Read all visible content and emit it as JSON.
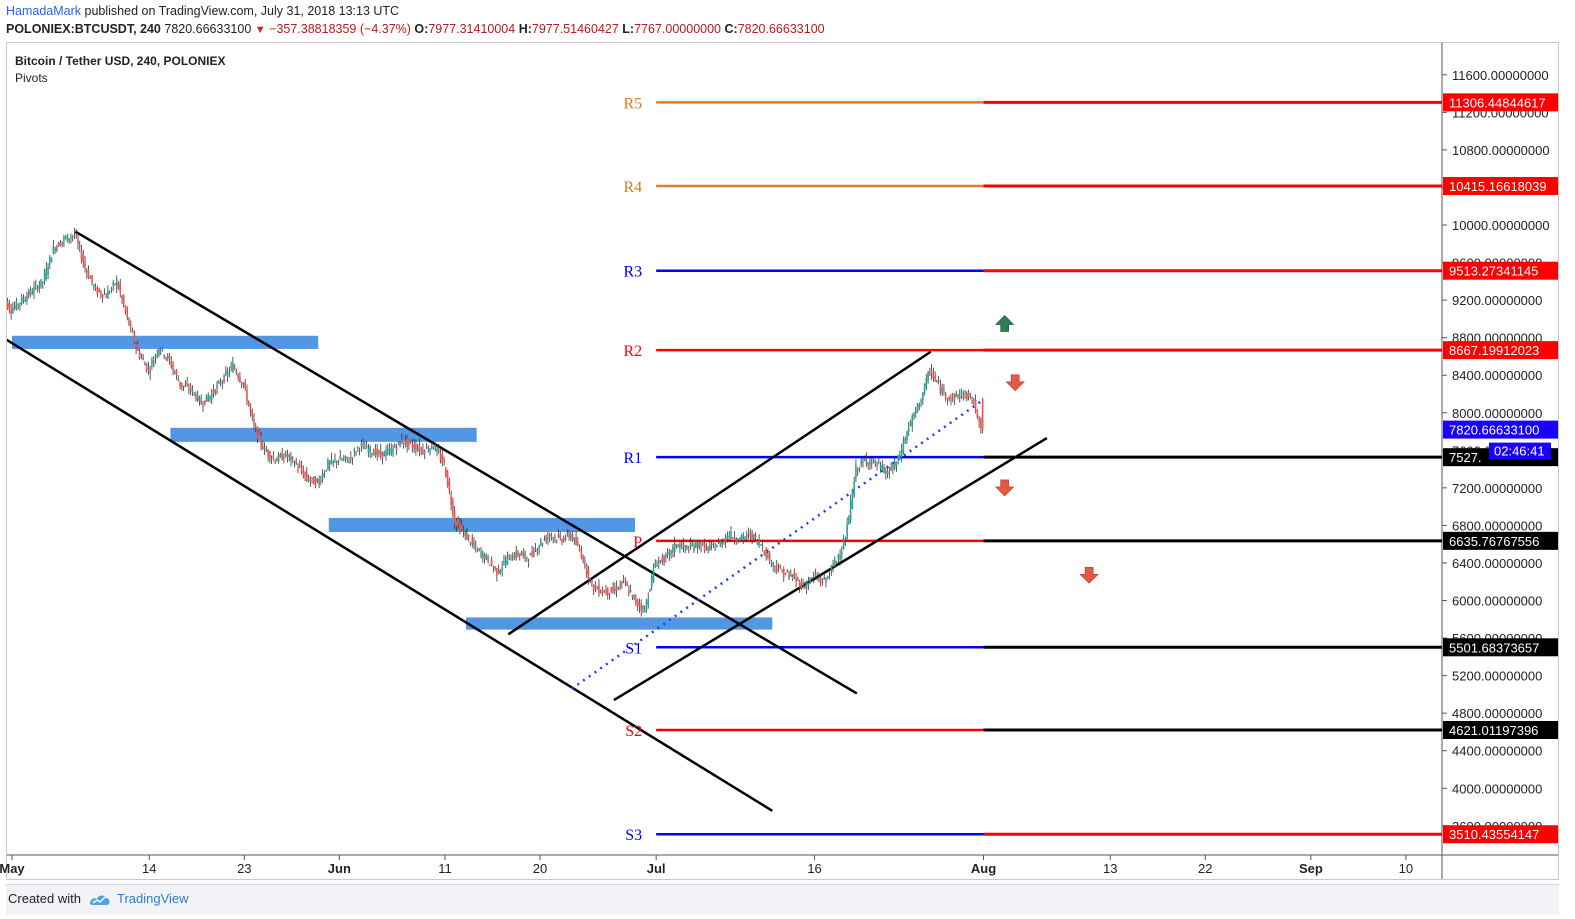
{
  "header": {
    "publisher": "HamadaMark",
    "published_text": "published on TradingView.com, July 31, 2018 13:13 UTC",
    "symbol": "POLONIEX:BTCUSDT, 240",
    "last": "7820.66633100",
    "change": "−357.38818359 (−4.37%)",
    "open_label": "O:",
    "open": "7977.31410004",
    "high_label": "H:",
    "high": "7977.51460427",
    "low_label": "L:",
    "low": "7767.00000000",
    "close_label": "C:",
    "close": "7820.66633100"
  },
  "legend": {
    "title": "Bitcoin / Tether USD, 240, POLONIEX",
    "indicator": "Pivots"
  },
  "footer": {
    "created_with": "Created with",
    "brand": "TradingView"
  },
  "colors": {
    "up_candle": "#26a69a",
    "down_candle": "#ef5350",
    "resistance_orange": "#e07b28",
    "pivot_red": "#ff0000",
    "pivot_blue": "#0000ff",
    "zone_blue": "#4a90e2",
    "arrow_up": "#2e7d5b",
    "arrow_down": "#e25a43"
  },
  "chart_data": {
    "type": "candlestick",
    "title": "Bitcoin / Tether USD, 240, POLONIEX",
    "ylim": [
      3200,
      11900
    ],
    "y_ticks": [
      11600,
      11200,
      10800,
      10400,
      10000,
      9600,
      9200,
      8800,
      8400,
      8000,
      7600,
      7200,
      6800,
      6400,
      6000,
      5600,
      5200,
      4800,
      4400,
      4000,
      3600
    ],
    "x_ticks": [
      {
        "label": "May",
        "date": "2018-05-01"
      },
      {
        "label": "14",
        "date": "2018-05-14"
      },
      {
        "label": "23",
        "date": "2018-05-23"
      },
      {
        "label": "Jun",
        "date": "2018-06-01"
      },
      {
        "label": "11",
        "date": "2018-06-11"
      },
      {
        "label": "20",
        "date": "2018-06-20"
      },
      {
        "label": "Jul",
        "date": "2018-07-01"
      },
      {
        "label": "16",
        "date": "2018-07-16"
      },
      {
        "label": "Aug",
        "date": "2018-08-01"
      },
      {
        "label": "13",
        "date": "2018-08-13"
      },
      {
        "label": "22",
        "date": "2018-08-22"
      },
      {
        "label": "Sep",
        "date": "2018-09-01"
      },
      {
        "label": "10",
        "date": "2018-09-10"
      }
    ],
    "daily_close": [
      [
        "2018-04-30",
        9250
      ],
      [
        "2018-05-01",
        9100
      ],
      [
        "2018-05-02",
        9200
      ],
      [
        "2018-05-03",
        9300
      ],
      [
        "2018-05-04",
        9400
      ],
      [
        "2018-05-05",
        9750
      ],
      [
        "2018-05-06",
        9850
      ],
      [
        "2018-05-07",
        9900
      ],
      [
        "2018-05-08",
        9550
      ],
      [
        "2018-05-09",
        9300
      ],
      [
        "2018-05-10",
        9250
      ],
      [
        "2018-05-11",
        9400
      ],
      [
        "2018-05-12",
        9000
      ],
      [
        "2018-05-13",
        8650
      ],
      [
        "2018-05-14",
        8450
      ],
      [
        "2018-05-15",
        8700
      ],
      [
        "2018-05-16",
        8550
      ],
      [
        "2018-05-17",
        8300
      ],
      [
        "2018-05-18",
        8250
      ],
      [
        "2018-05-19",
        8100
      ],
      [
        "2018-05-20",
        8200
      ],
      [
        "2018-05-21",
        8350
      ],
      [
        "2018-05-22",
        8500
      ],
      [
        "2018-05-23",
        8300
      ],
      [
        "2018-05-24",
        7850
      ],
      [
        "2018-05-25",
        7600
      ],
      [
        "2018-05-26",
        7500
      ],
      [
        "2018-05-27",
        7550
      ],
      [
        "2018-05-28",
        7450
      ],
      [
        "2018-05-29",
        7300
      ],
      [
        "2018-05-30",
        7250
      ],
      [
        "2018-05-31",
        7450
      ],
      [
        "2018-06-01",
        7500
      ],
      [
        "2018-06-02",
        7500
      ],
      [
        "2018-06-03",
        7650
      ],
      [
        "2018-06-04",
        7600
      ],
      [
        "2018-06-05",
        7550
      ],
      [
        "2018-06-06",
        7600
      ],
      [
        "2018-06-07",
        7700
      ],
      [
        "2018-06-08",
        7650
      ],
      [
        "2018-06-09",
        7600
      ],
      [
        "2018-06-10",
        7650
      ],
      [
        "2018-06-11",
        7450
      ],
      [
        "2018-06-12",
        6850
      ],
      [
        "2018-06-13",
        6700
      ],
      [
        "2018-06-14",
        6550
      ],
      [
        "2018-06-15",
        6450
      ],
      [
        "2018-06-16",
        6300
      ],
      [
        "2018-06-17",
        6450
      ],
      [
        "2018-06-18",
        6500
      ],
      [
        "2018-06-19",
        6450
      ],
      [
        "2018-06-20",
        6600
      ],
      [
        "2018-06-21",
        6700
      ],
      [
        "2018-06-22",
        6650
      ],
      [
        "2018-06-23",
        6700
      ],
      [
        "2018-06-24",
        6500
      ],
      [
        "2018-06-25",
        6150
      ],
      [
        "2018-06-26",
        6100
      ],
      [
        "2018-06-27",
        6100
      ],
      [
        "2018-06-28",
        6200
      ],
      [
        "2018-06-29",
        6000
      ],
      [
        "2018-06-30",
        5900
      ],
      [
        "2018-07-01",
        6400
      ],
      [
        "2018-07-02",
        6450
      ],
      [
        "2018-07-03",
        6600
      ],
      [
        "2018-07-04",
        6550
      ],
      [
        "2018-07-05",
        6600
      ],
      [
        "2018-07-06",
        6550
      ],
      [
        "2018-07-07",
        6600
      ],
      [
        "2018-07-08",
        6700
      ],
      [
        "2018-07-09",
        6650
      ],
      [
        "2018-07-10",
        6700
      ],
      [
        "2018-07-11",
        6600
      ],
      [
        "2018-07-12",
        6400
      ],
      [
        "2018-07-13",
        6300
      ],
      [
        "2018-07-14",
        6250
      ],
      [
        "2018-07-15",
        6150
      ],
      [
        "2018-07-16",
        6250
      ],
      [
        "2018-07-17",
        6200
      ],
      [
        "2018-07-18",
        6400
      ],
      [
        "2018-07-19",
        6650
      ],
      [
        "2018-07-20",
        7400
      ],
      [
        "2018-07-21",
        7500
      ],
      [
        "2018-07-22",
        7450
      ],
      [
        "2018-07-23",
        7350
      ],
      [
        "2018-07-24",
        7500
      ],
      [
        "2018-07-25",
        7850
      ],
      [
        "2018-07-26",
        8100
      ],
      [
        "2018-07-27",
        8450
      ],
      [
        "2018-07-28",
        8250
      ],
      [
        "2018-07-29",
        8150
      ],
      [
        "2018-07-30",
        8200
      ],
      [
        "2018-07-31",
        8150
      ],
      [
        "2018-08-01",
        7820
      ]
    ],
    "pivots": [
      {
        "label": "R5",
        "value": 11306.44844617,
        "value_text": "11306.44844617"
      },
      {
        "label": "R4",
        "value": 10415.16618039,
        "value_text": "10415.16618039"
      },
      {
        "label": "R3",
        "value": 9513.27341145,
        "value_text": "9513.27341145"
      },
      {
        "label": "R2",
        "value": 8667.19912023,
        "value_text": "8667.19912023"
      },
      {
        "label": "R1",
        "value": 7527.0,
        "value_text": "7527."
      },
      {
        "label": "P",
        "value": 6635.76767556,
        "value_text": "6635.76767556"
      },
      {
        "label": "S1",
        "value": 5501.68373657,
        "value_text": "5501.68373657"
      },
      {
        "label": "S2",
        "value": 4621.01197396,
        "value_text": "4621.01197396"
      },
      {
        "label": "S3",
        "value": 3510.43554147,
        "value_text": "3510.43554147"
      }
    ],
    "last_price": {
      "value": 7820.666331,
      "text": "7820.66633100",
      "countdown": "02:46:41"
    },
    "trendlines": [
      {
        "from": [
          "2018-04-29",
          8880
        ],
        "to": [
          "2018-07-12",
          3760
        ]
      },
      {
        "from": [
          "2018-05-07",
          9930
        ],
        "to": [
          "2018-07-20",
          5010
        ]
      },
      {
        "from": [
          "2018-06-17",
          5640
        ],
        "to": [
          "2018-07-27",
          8650
        ]
      },
      {
        "from": [
          "2018-06-27",
          4940
        ],
        "to": [
          "2018-08-07",
          7730
        ]
      },
      {
        "from": [
          "2018-06-23",
          5060
        ],
        "to": [
          "2018-08-01",
          8140
        ],
        "dotted": true
      }
    ],
    "zones": [
      {
        "from": "2018-05-01",
        "to": "2018-05-30",
        "low": 8680,
        "high": 8820
      },
      {
        "from": "2018-05-16",
        "to": "2018-06-14",
        "low": 7690,
        "high": 7840
      },
      {
        "from": "2018-05-31",
        "to": "2018-06-29",
        "low": 6730,
        "high": 6880
      },
      {
        "from": "2018-06-13",
        "to": "2018-07-12",
        "low": 5690,
        "high": 5820
      }
    ],
    "arrows": [
      {
        "dir": "up",
        "date": "2018-08-03",
        "value": 8940
      },
      {
        "dir": "down",
        "date": "2018-08-04",
        "value": 8330
      },
      {
        "dir": "down",
        "date": "2018-08-03",
        "value": 7210
      },
      {
        "dir": "down",
        "date": "2018-08-11",
        "value": 6280
      }
    ]
  }
}
